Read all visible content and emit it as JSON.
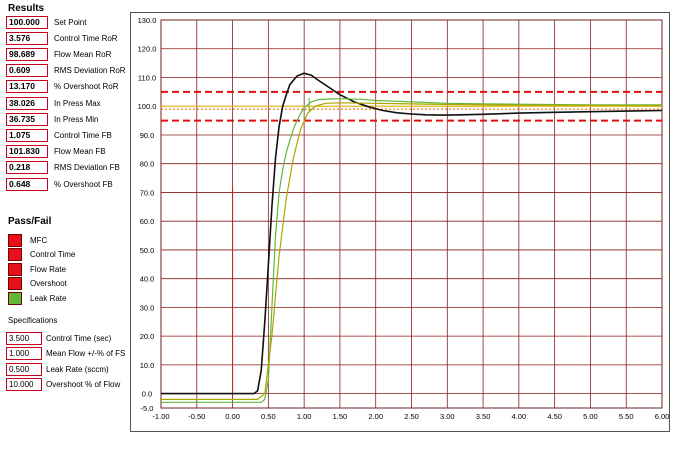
{
  "results": {
    "title": "Results",
    "rows": [
      {
        "value": "100.000",
        "label": "Set Point"
      },
      {
        "value": "3.576",
        "label": "Control Time RoR"
      },
      {
        "value": "98.689",
        "label": "Flow Mean RoR"
      },
      {
        "value": "0.609",
        "label": "RMS Deviation RoR"
      },
      {
        "value": "13.170",
        "label": "% Overshoot RoR"
      },
      {
        "value": "38.026",
        "label": "In Press Max"
      },
      {
        "value": "36.735",
        "label": "In Press Min"
      },
      {
        "value": "1.075",
        "label": "Control Time FB"
      },
      {
        "value": "101.830",
        "label": "Flow Mean FB"
      },
      {
        "value": "0.218",
        "label": "RMS Deviation FB"
      },
      {
        "value": "0.648",
        "label": "% Overshoot FB"
      }
    ]
  },
  "pass_fail": {
    "title": "Pass/Fail",
    "items": [
      {
        "label": "MFC",
        "status": "fail",
        "color": "#e8101a"
      },
      {
        "label": "Control Time",
        "status": "fail",
        "color": "#e8101a"
      },
      {
        "label": "Flow Rate",
        "status": "fail",
        "color": "#e8101a"
      },
      {
        "label": "Overshoot",
        "status": "fail",
        "color": "#e8101a"
      },
      {
        "label": "Leak Rate",
        "status": "pass",
        "color": "#5fb83a"
      }
    ]
  },
  "specifications": {
    "title": "Specifications",
    "rows": [
      {
        "value": "3.500",
        "label": "Control Time (sec)"
      },
      {
        "value": "1.000",
        "label": "Mean Flow  +/-% of FS"
      },
      {
        "value": "0.500",
        "label": "Leak Rate (sccm)"
      },
      {
        "value": "10.000",
        "label": "Overshoot  % of Flow"
      }
    ]
  },
  "chart_data": {
    "type": "line",
    "xlim": [
      -1.0,
      6.0
    ],
    "ylim": [
      -5.0,
      130.0
    ],
    "x_ticks": [
      "-1.00",
      "-0.50",
      "0.00",
      "0.50",
      "1.00",
      "1.50",
      "2.00",
      "2.50",
      "3.00",
      "3.50",
      "4.00",
      "4.50",
      "5.00",
      "5.50",
      "6.00"
    ],
    "y_ticks": [
      "-5.0",
      "0.0",
      "10.0",
      "20.0",
      "30.0",
      "40.0",
      "50.0",
      "60.0",
      "70.0",
      "80.0",
      "90.0",
      "100.0",
      "110.0",
      "120.0",
      "130.0"
    ],
    "grid": true,
    "reference_lines": [
      {
        "y": 105.0,
        "style": "dashed",
        "color": "#e01010"
      },
      {
        "y": 100.0,
        "style": "solid",
        "color": "#e8c020"
      },
      {
        "y": 99.0,
        "style": "dotted",
        "color": "#e87a20"
      },
      {
        "y": 95.0,
        "style": "dashed",
        "color": "#e01010"
      }
    ],
    "series": [
      {
        "color": "#101010",
        "x": [
          -1.0,
          0.3,
          0.35,
          0.4,
          0.45,
          0.5,
          0.55,
          0.6,
          0.65,
          0.7,
          0.75,
          0.8,
          0.9,
          1.0,
          1.1,
          1.2,
          1.35,
          1.5,
          1.7,
          1.9,
          2.1,
          2.3,
          2.5,
          2.7,
          2.9,
          3.0,
          3.2,
          3.5,
          4.0,
          4.5,
          5.0,
          5.5,
          6.0
        ],
        "y": [
          0.0,
          0.0,
          1.0,
          8.0,
          25.0,
          45.0,
          65.0,
          82.0,
          93.0,
          100.0,
          104.0,
          107.5,
          110.5,
          111.5,
          110.8,
          109.0,
          106.5,
          104.0,
          101.5,
          99.8,
          98.5,
          97.7,
          97.3,
          97.0,
          96.9,
          96.9,
          97.0,
          97.2,
          97.6,
          97.9,
          98.1,
          98.3,
          98.5
        ]
      },
      {
        "color": "#5fb83a",
        "x": [
          -1.0,
          0.35,
          0.4,
          0.45,
          0.5,
          0.55,
          0.6,
          0.65,
          0.7,
          0.75,
          0.8,
          0.85,
          0.9,
          0.95,
          1.0,
          1.05,
          1.1,
          1.2,
          1.35,
          1.5,
          1.8,
          2.0,
          2.5,
          3.0,
          3.5,
          4.0,
          5.0,
          6.0
        ],
        "y": [
          -3.0,
          -3.0,
          -3.0,
          -2.0,
          5.0,
          30.0,
          55.0,
          70.0,
          78.0,
          84.0,
          88.0,
          92.0,
          95.0,
          97.5,
          99.5,
          100.5,
          101.5,
          102.3,
          102.5,
          102.6,
          102.4,
          102.0,
          101.5,
          101.0,
          100.8,
          100.7,
          100.5,
          100.5
        ]
      },
      {
        "color": "#a8a800",
        "x": [
          -1.0,
          0.35,
          0.45,
          0.55,
          0.65,
          0.75,
          0.85,
          0.95,
          1.05,
          1.15,
          1.3,
          1.5,
          2.0,
          2.5,
          3.0,
          4.0,
          5.0,
          6.0
        ],
        "y": [
          -2.0,
          -2.0,
          0.0,
          20.0,
          48.0,
          68.0,
          82.0,
          92.0,
          97.5,
          100.0,
          101.0,
          101.2,
          101.0,
          100.8,
          100.6,
          100.4,
          100.3,
          100.2
        ]
      }
    ]
  }
}
